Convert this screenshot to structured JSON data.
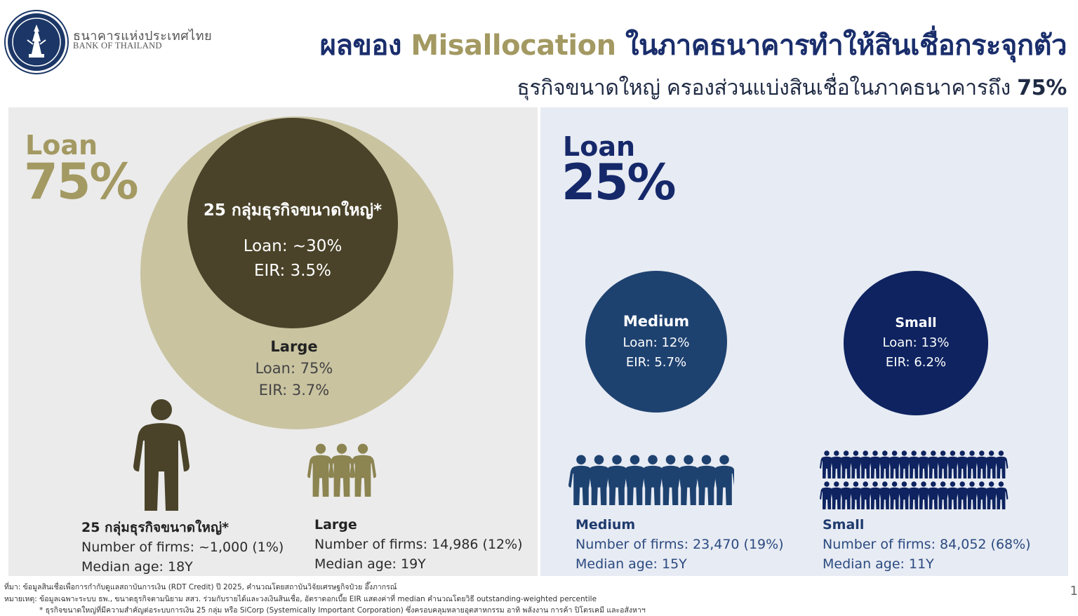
{
  "header": {
    "brand_th": "ธนาคารแห่งประเทศไทย",
    "brand_en": "BANK OF THAILAND",
    "title_part1": "ผลของ ",
    "title_highlight": "Misallocation",
    "title_part2": " ในภาคธนาคารทำให้สินเชื่อกระจุกตัว",
    "subtitle_text": "ธุรกิจขนาดใหญ่ ครองส่วนแบ่งสินเชื่อในภาคธนาคารถึง ",
    "subtitle_pct": "75%"
  },
  "left_panel": {
    "label": "Loan",
    "pct": "75%",
    "top25": {
      "title": "25 กลุ่มธุรกิจขนาดใหญ่*",
      "loan": "Loan: ~30%",
      "eir": "EIR: 3.5%"
    },
    "large": {
      "title": "Large",
      "loan": "Loan: 75%",
      "eir": "EIR: 3.7%"
    },
    "stats": [
      {
        "name": "25 กลุ่มธุรกิจขนาดใหญ่*",
        "firms": "Number of firms: ~1,000 (1%)",
        "age": "Median age: 18Y"
      },
      {
        "name": "Large",
        "firms": "Number of firms: 14,986 (12%)",
        "age": "Median age: 19Y"
      }
    ]
  },
  "right_panel": {
    "label": "Loan",
    "pct": "25%",
    "medium": {
      "title": "Medium",
      "loan": "Loan: 12%",
      "eir": "EIR: 5.7%"
    },
    "small": {
      "title": "Small",
      "loan": "Loan: 13%",
      "eir": "EIR: 6.2%"
    },
    "stats": [
      {
        "name": "Medium",
        "firms": "Number of firms: 23,470 (19%)",
        "age": "Median age: 15Y"
      },
      {
        "name": "Small",
        "firms": "Number of firms: 84,052 (68%)",
        "age": "Median age: 11Y"
      }
    ]
  },
  "footnotes": {
    "source": "ที่มา: ข้อมูลสินเชื่อเพื่อการกำกับดูแลสถาบันการเงิน (RDT Credit) ปี 2025, คำนวณโดยสถาบันวิจัยเศรษฐกิจป๋วย อึ๊งภากรณ์",
    "note": "หมายเหตุ: ข้อมูลเฉพาะระบบ ธพ., ขนาดธุรกิจตามนิยาม สสว. ร่วมกับรายได้และวงเงินสินเชื่อ, อัตราดอกเบี้ย EIR แสดงค่าที่ median คำนวณโดยวิธี outstanding-weighted percentile",
    "star": "* ธุรกิจขนาดใหญ่ที่มีความสำคัญต่อระบบการเงิน 25 กลุ่ม หรือ SiCorp (Systemically Important Corporation) ซึ่งครอบคลุมหลายอุตสาหกรรม อาทิ พลังงาน การค้า ปิโตรเคมี และอสังหาฯ"
  },
  "page_number": "1",
  "colors": {
    "navy": "#1a2e6c",
    "gold": "#a39962",
    "dark_olive": "#4a4329",
    "light_khaki": "#c9c3a0",
    "medium_blue": "#1e4270",
    "dark_navy": "#0e2360"
  }
}
